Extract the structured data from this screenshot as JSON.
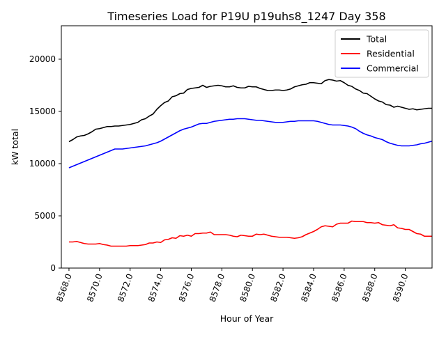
{
  "chart_data": {
    "type": "line",
    "title": "Timeseries Load for P19U p19uhs8_1247  Day 358",
    "xlabel": "Hour of Year",
    "ylabel": "kW total",
    "xlim": [
      8567.5,
      8591.75
    ],
    "ylim": [
      0,
      23200
    ],
    "x_ticks": [
      8568,
      8570,
      8572,
      8574,
      8576,
      8578,
      8580,
      8582,
      8584,
      8586,
      8588,
      8590
    ],
    "x_tick_labels": [
      "8568.0",
      "8570.0",
      "8572.0",
      "8574.0",
      "8576.0",
      "8578.0",
      "8580.0",
      "8582.0",
      "8584.0",
      "8586.0",
      "8588.0",
      "8590.0"
    ],
    "y_ticks": [
      0,
      5000,
      10000,
      15000,
      20000
    ],
    "y_tick_labels": [
      "0",
      "5000",
      "10000",
      "15000",
      "20000"
    ],
    "grid": false,
    "legend_position": "top-right",
    "x": [
      8568.0,
      8568.25,
      8568.5,
      8568.75,
      8569.0,
      8569.25,
      8569.5,
      8569.75,
      8570.0,
      8570.25,
      8570.5,
      8570.75,
      8571.0,
      8571.25,
      8571.5,
      8571.75,
      8572.0,
      8572.25,
      8572.5,
      8572.75,
      8573.0,
      8573.25,
      8573.5,
      8573.75,
      8574.0,
      8574.25,
      8574.5,
      8574.75,
      8575.0,
      8575.25,
      8575.5,
      8575.75,
      8576.0,
      8576.25,
      8576.5,
      8576.75,
      8577.0,
      8577.25,
      8577.5,
      8577.75,
      8578.0,
      8578.25,
      8578.5,
      8578.75,
      8579.0,
      8579.25,
      8579.5,
      8579.75,
      8580.0,
      8580.25,
      8580.5,
      8580.75,
      8581.0,
      8581.25,
      8581.5,
      8581.75,
      8582.0,
      8582.25,
      8582.5,
      8582.75,
      8583.0,
      8583.25,
      8583.5,
      8583.75,
      8584.0,
      8584.25,
      8584.5,
      8584.75,
      8585.0,
      8585.25,
      8585.5,
      8585.75,
      8586.0,
      8586.25,
      8586.5,
      8586.75,
      8587.0,
      8587.25,
      8587.5,
      8587.75,
      8588.0,
      8588.25,
      8588.5,
      8588.75,
      8589.0,
      8589.25,
      8589.5,
      8589.75,
      8590.0,
      8590.25,
      8590.5,
      8590.75,
      8591.0,
      8591.25,
      8591.5,
      8591.75
    ],
    "series": [
      {
        "name": "Total",
        "color": "#000000",
        "values": [
          12100,
          12300,
          12550,
          12650,
          12700,
          12850,
          13050,
          13300,
          13350,
          13450,
          13550,
          13550,
          13600,
          13600,
          13650,
          13700,
          13750,
          13850,
          13950,
          14200,
          14300,
          14550,
          14750,
          15200,
          15550,
          15850,
          16000,
          16400,
          16500,
          16700,
          16750,
          17100,
          17200,
          17250,
          17300,
          17500,
          17300,
          17400,
          17450,
          17500,
          17450,
          17350,
          17350,
          17450,
          17300,
          17250,
          17250,
          17400,
          17350,
          17350,
          17200,
          17100,
          17000,
          17000,
          17050,
          17050,
          17000,
          17050,
          17150,
          17350,
          17450,
          17550,
          17600,
          17750,
          17750,
          17700,
          17650,
          17950,
          18050,
          18000,
          17900,
          17950,
          17750,
          17500,
          17400,
          17150,
          17000,
          16750,
          16700,
          16450,
          16200,
          16000,
          15900,
          15650,
          15600,
          15400,
          15500,
          15400,
          15300,
          15200,
          15250,
          15150,
          15200,
          15250,
          15300,
          15300
        ]
      },
      {
        "name": "Residential",
        "color": "#ff0000",
        "values": [
          2500,
          2500,
          2550,
          2450,
          2350,
          2300,
          2300,
          2300,
          2350,
          2250,
          2200,
          2100,
          2100,
          2100,
          2100,
          2100,
          2150,
          2150,
          2150,
          2200,
          2250,
          2400,
          2400,
          2500,
          2450,
          2700,
          2750,
          2900,
          2850,
          3100,
          3050,
          3150,
          3050,
          3300,
          3300,
          3350,
          3350,
          3450,
          3200,
          3200,
          3200,
          3200,
          3150,
          3050,
          3000,
          3150,
          3100,
          3050,
          3050,
          3250,
          3200,
          3250,
          3150,
          3050,
          3000,
          2950,
          2950,
          2950,
          2900,
          2850,
          2900,
          3000,
          3200,
          3350,
          3500,
          3700,
          3950,
          4050,
          4000,
          3950,
          4200,
          4300,
          4300,
          4300,
          4500,
          4450,
          4450,
          4450,
          4350,
          4350,
          4300,
          4350,
          4150,
          4100,
          4050,
          4150,
          3850,
          3800,
          3700,
          3700,
          3500,
          3300,
          3250,
          3050,
          3050,
          3050
        ]
      },
      {
        "name": "Commercial",
        "color": "#0000ff",
        "values": [
          9600,
          9750,
          9900,
          10050,
          10200,
          10350,
          10500,
          10650,
          10800,
          10950,
          11100,
          11250,
          11400,
          11400,
          11400,
          11450,
          11500,
          11550,
          11600,
          11650,
          11700,
          11800,
          11900,
          12000,
          12150,
          12350,
          12550,
          12750,
          12950,
          13150,
          13300,
          13400,
          13500,
          13650,
          13800,
          13850,
          13850,
          13950,
          14050,
          14100,
          14150,
          14200,
          14250,
          14250,
          14300,
          14300,
          14300,
          14250,
          14200,
          14150,
          14150,
          14100,
          14050,
          14000,
          13950,
          13950,
          13950,
          14000,
          14050,
          14050,
          14100,
          14100,
          14100,
          14100,
          14100,
          14050,
          13950,
          13850,
          13750,
          13700,
          13700,
          13700,
          13650,
          13600,
          13500,
          13350,
          13100,
          12900,
          12750,
          12650,
          12500,
          12400,
          12300,
          12100,
          11950,
          11850,
          11750,
          11700,
          11700,
          11700,
          11750,
          11800,
          11900,
          11950,
          12050,
          12150
        ]
      }
    ]
  }
}
